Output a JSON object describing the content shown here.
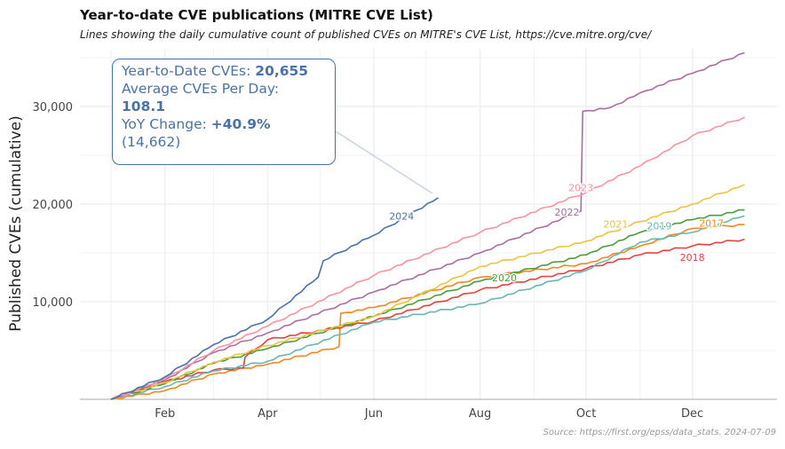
{
  "title": "Year-to-date CVE publications (MITRE CVE List)",
  "subtitle": "Lines showing the daily cumulative count of published CVEs on MITRE's CVE List, https://cve.mitre.org/cve/",
  "source": "Source: https://first.org/epss/data_stats. 2024-07-09",
  "annotation": {
    "ytd_label": "Year-to-Date CVEs: ",
    "ytd_value": "20,655",
    "avg_label": "Average CVEs Per Day:",
    "avg_value": "108.1",
    "yoy_label": "YoY Change: ",
    "yoy_value": "+40.9%",
    "prior": "(14,662)"
  },
  "chart_data": {
    "type": "line",
    "title": "Year-to-date CVE publications (MITRE CVE List)",
    "xlabel": "",
    "ylabel": "Published CVEs (cumulative)",
    "ylim": [
      0,
      35500
    ],
    "yticks": [
      {
        "v": 10000,
        "label": "10,000"
      },
      {
        "v": 20000,
        "label": "20,000"
      },
      {
        "v": 30000,
        "label": "30,000"
      }
    ],
    "xticks": [
      {
        "d": "02-01",
        "label": "Feb"
      },
      {
        "d": "04-01",
        "label": "Apr"
      },
      {
        "d": "06-01",
        "label": "Jun"
      },
      {
        "d": "08-01",
        "label": "Aug"
      },
      {
        "d": "10-01",
        "label": "Oct"
      },
      {
        "d": "12-01",
        "label": "Dec"
      }
    ],
    "grid": true,
    "series": [
      {
        "name": "2017",
        "color": "#f7861f",
        "label_at": [
          "12-12",
          17700
        ],
        "points": [
          [
            "01-01",
            0
          ],
          [
            "02-01",
            900
          ],
          [
            "03-01",
            2600
          ],
          [
            "04-01",
            3600
          ],
          [
            "05-12",
            5400
          ],
          [
            "05-13",
            8800
          ],
          [
            "06-01",
            9400
          ],
          [
            "08-01",
            12500
          ],
          [
            "10-01",
            13900
          ],
          [
            "11-01",
            15700
          ],
          [
            "12-01",
            17500
          ],
          [
            "12-31",
            17900
          ]
        ]
      },
      {
        "name": "2018",
        "color": "#e2413f",
        "label_at": [
          "12-01",
          14200
        ],
        "points": [
          [
            "01-01",
            0
          ],
          [
            "02-01",
            1800
          ],
          [
            "03-01",
            3000
          ],
          [
            "03-18",
            3200
          ],
          [
            "03-19",
            4300
          ],
          [
            "04-01",
            6100
          ],
          [
            "06-01",
            8000
          ],
          [
            "08-01",
            11200
          ],
          [
            "10-01",
            13400
          ],
          [
            "11-01",
            14800
          ],
          [
            "12-01",
            15700
          ],
          [
            "12-31",
            16400
          ]
        ]
      },
      {
        "name": "2019",
        "color": "#6bb6b0",
        "label_at": [
          "11-12",
          17400
        ],
        "points": [
          [
            "01-01",
            0
          ],
          [
            "02-01",
            1300
          ],
          [
            "03-01",
            2900
          ],
          [
            "04-01",
            3900
          ],
          [
            "06-01",
            7900
          ],
          [
            "08-01",
            9800
          ],
          [
            "10-01",
            13200
          ],
          [
            "11-01",
            16100
          ],
          [
            "12-01",
            17100
          ],
          [
            "12-31",
            18800
          ]
        ]
      },
      {
        "name": "2020",
        "color": "#4e9a3e",
        "label_at": [
          "08-15",
          12100
        ],
        "points": [
          [
            "01-01",
            0
          ],
          [
            "02-01",
            1600
          ],
          [
            "03-01",
            3700
          ],
          [
            "04-01",
            5200
          ],
          [
            "06-01",
            8500
          ],
          [
            "08-01",
            12100
          ],
          [
            "10-01",
            14800
          ],
          [
            "11-01",
            17100
          ],
          [
            "12-01",
            18400
          ],
          [
            "12-31",
            19400
          ]
        ]
      },
      {
        "name": "2021",
        "color": "#e9c440",
        "label_at": [
          "10-18",
          17600
        ],
        "points": [
          [
            "01-01",
            0
          ],
          [
            "02-01",
            1700
          ],
          [
            "03-01",
            3800
          ],
          [
            "04-01",
            5500
          ],
          [
            "06-01",
            8500
          ],
          [
            "08-01",
            13600
          ],
          [
            "10-01",
            16200
          ],
          [
            "11-01",
            18200
          ],
          [
            "12-01",
            20000
          ],
          [
            "12-31",
            22000
          ]
        ]
      },
      {
        "name": "2022",
        "color": "#a86ea0",
        "label_at": [
          "09-20",
          18800
        ],
        "points": [
          [
            "01-01",
            0
          ],
          [
            "02-01",
            2000
          ],
          [
            "03-01",
            4800
          ],
          [
            "04-01",
            6800
          ],
          [
            "06-01",
            11000
          ],
          [
            "08-01",
            15000
          ],
          [
            "09-28",
            19300
          ],
          [
            "09-29",
            29500
          ],
          [
            "10-15",
            29900
          ],
          [
            "11-01",
            31400
          ],
          [
            "12-01",
            33400
          ],
          [
            "12-31",
            35500
          ]
        ]
      },
      {
        "name": "2023",
        "color": "#f9939f",
        "label_at": [
          "09-28",
          21300
        ],
        "points": [
          [
            "01-01",
            0
          ],
          [
            "02-01",
            2100
          ],
          [
            "03-01",
            5000
          ],
          [
            "04-01",
            7500
          ],
          [
            "06-01",
            12700
          ],
          [
            "08-01",
            17100
          ],
          [
            "10-01",
            21200
          ],
          [
            "11-01",
            23900
          ],
          [
            "12-01",
            27000
          ],
          [
            "12-31",
            28900
          ]
        ]
      },
      {
        "name": "2024",
        "color": "#4a72a6",
        "label_at": [
          "06-17",
          18400
        ],
        "points": [
          [
            "01-01",
            0
          ],
          [
            "02-01",
            2300
          ],
          [
            "03-01",
            5600
          ],
          [
            "04-01",
            8200
          ],
          [
            "04-30",
            12500
          ],
          [
            "05-03",
            14200
          ],
          [
            "06-01",
            16800
          ],
          [
            "07-08",
            20655
          ]
        ]
      }
    ]
  }
}
